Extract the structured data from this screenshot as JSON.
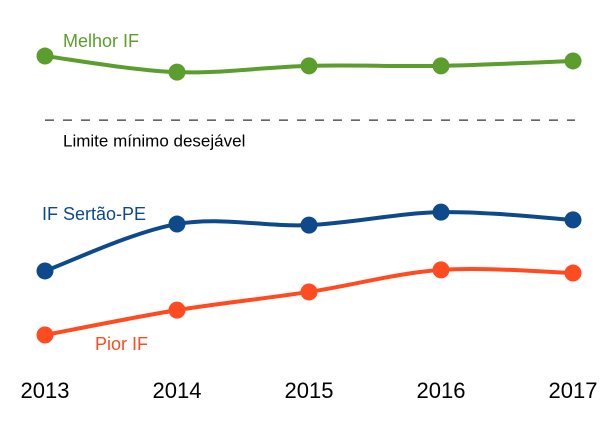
{
  "chart_data": {
    "type": "line",
    "categories": [
      "2013",
      "2014",
      "2015",
      "2016",
      "2017"
    ],
    "ylim": [
      0,
      100
    ],
    "series": [
      {
        "name": "Melhor IF",
        "color": "#5b9e2d",
        "values": [
          89.7,
          85.1,
          86.9,
          86.9,
          88.3
        ]
      },
      {
        "name": "IF Sertão-PE",
        "color": "#0e4a8b",
        "values": [
          28.3,
          41.7,
          41.4,
          45.1,
          42.9
        ]
      },
      {
        "name": "Pior IF",
        "color": "#ff4b1f",
        "values": [
          10,
          17.1,
          22.3,
          28.6,
          27.7
        ]
      }
    ],
    "threshold": {
      "label": "Limite mínimo desejável",
      "value": 71.4
    }
  }
}
